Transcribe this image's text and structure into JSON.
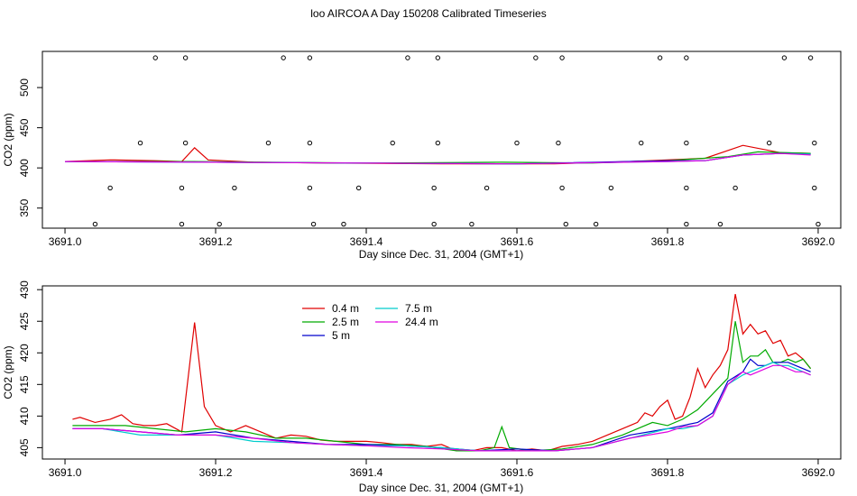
{
  "title": "loo AIRCOA A  Day 150208  Calibrated Timeseries",
  "colors": {
    "0.4 m": "#e00000",
    "2.5 m": "#00aa00",
    "5 m": "#0000cc",
    "7.5 m": "#00cccc",
    "24.4 m": "#e000e0"
  },
  "chart_data": [
    {
      "type": "line",
      "title": "",
      "xlabel": "Day since Dec. 31, 2004 (GMT+1)",
      "ylabel": "CO2 (ppm)",
      "xlim": [
        3690.97,
        3692.03
      ],
      "ylim": [
        325,
        545
      ],
      "xticks": [
        "3691.0",
        "3691.2",
        "3691.4",
        "3691.6",
        "3691.8",
        "3692.0"
      ],
      "yticks": [
        "350",
        "400",
        "450",
        "500"
      ],
      "series": [
        {
          "name": "0.4 m",
          "color": "#e00000",
          "x": [
            3691.0,
            3691.06,
            3691.12,
            3691.155,
            3691.172,
            3691.19,
            3691.25,
            3691.35,
            3691.5,
            3691.65,
            3691.75,
            3691.85,
            3691.9,
            3691.95,
            3691.99
          ],
          "y": [
            408,
            410,
            409,
            408,
            425,
            410,
            407,
            406,
            405,
            405,
            408,
            412,
            428,
            419,
            418
          ]
        },
        {
          "name": "2.5 m",
          "color": "#00aa00",
          "x": [
            3691.0,
            3691.17,
            3691.4,
            3691.58,
            3691.7,
            3691.8,
            3691.88,
            3691.92,
            3691.99
          ],
          "y": [
            408,
            408,
            406,
            407,
            406,
            409,
            414,
            420,
            418
          ]
        },
        {
          "name": "5 m",
          "color": "#0000cc",
          "x": [
            3691.0,
            3691.2,
            3691.4,
            3691.6,
            3691.8,
            3691.85,
            3691.9,
            3691.95,
            3691.99
          ],
          "y": [
            408,
            407,
            406,
            405,
            409,
            409,
            416,
            418,
            417
          ]
        },
        {
          "name": "7.5 m",
          "color": "#00cccc",
          "x": [
            3691.0,
            3691.2,
            3691.4,
            3691.6,
            3691.8,
            3691.85,
            3691.9,
            3691.95,
            3691.99
          ],
          "y": [
            408,
            407,
            406,
            405,
            408,
            409,
            416,
            418,
            417
          ]
        },
        {
          "name": "24.4 m",
          "color": "#e000e0",
          "x": [
            3691.0,
            3691.2,
            3691.4,
            3691.6,
            3691.8,
            3691.85,
            3691.9,
            3691.95,
            3691.99
          ],
          "y": [
            408,
            407,
            406,
            405,
            408,
            409,
            416,
            418,
            416
          ]
        }
      ],
      "markers": {
        "x": [
          3691.12,
          3691.16,
          3691.29,
          3691.325,
          3691.455,
          3691.495,
          3691.625,
          3691.66,
          3691.79,
          3691.825,
          3691.955,
          3691.99,
          3691.1,
          3691.16,
          3691.27,
          3691.325,
          3691.435,
          3691.495,
          3691.6,
          3691.655,
          3691.765,
          3691.825,
          3691.935,
          3691.995,
          3691.06,
          3691.155,
          3691.225,
          3691.325,
          3691.39,
          3691.49,
          3691.56,
          3691.66,
          3691.725,
          3691.825,
          3691.89,
          3691.995,
          3691.04,
          3691.155,
          3691.205,
          3691.33,
          3691.37,
          3691.49,
          3691.54,
          3691.665,
          3691.705,
          3691.825,
          3691.87,
          3692.0
        ],
        "y": [
          537,
          537,
          537,
          537,
          537,
          537,
          537,
          537,
          537,
          537,
          537,
          537,
          431,
          431,
          431,
          431,
          431,
          431,
          431,
          431,
          431,
          431,
          431,
          431,
          375,
          375,
          375,
          375,
          375,
          375,
          375,
          375,
          375,
          375,
          375,
          375,
          330,
          330,
          330,
          330,
          330,
          330,
          330,
          330,
          330,
          330,
          330,
          330
        ]
      }
    },
    {
      "type": "line",
      "title": "",
      "xlabel": "Day since Dec. 31, 2004 (GMT+1)",
      "ylabel": "CO2 (ppm)",
      "xlim": [
        3690.97,
        3692.03
      ],
      "ylim": [
        403.2,
        430.6
      ],
      "xticks": [
        "3691.0",
        "3691.2",
        "3691.4",
        "3691.6",
        "3691.8",
        "3692.0"
      ],
      "yticks": [
        "405",
        "410",
        "415",
        "420",
        "425",
        "430"
      ],
      "legend": {
        "placement": "top-left",
        "entries": [
          "0.4 m",
          "2.5 m",
          "5 m",
          "7.5 m",
          "24.4 m"
        ]
      },
      "series": [
        {
          "name": "0.4 m",
          "color": "#e00000",
          "x": [
            3691.01,
            3691.02,
            3691.04,
            3691.06,
            3691.075,
            3691.09,
            3691.105,
            3691.12,
            3691.135,
            3691.155,
            3691.172,
            3691.185,
            3691.2,
            3691.22,
            3691.24,
            3691.26,
            3691.28,
            3691.3,
            3691.32,
            3691.34,
            3691.36,
            3691.38,
            3691.4,
            3691.42,
            3691.44,
            3691.46,
            3691.48,
            3691.5,
            3691.52,
            3691.54,
            3691.56,
            3691.58,
            3691.6,
            3691.62,
            3691.64,
            3691.66,
            3691.68,
            3691.7,
            3691.72,
            3691.74,
            3691.75,
            3691.76,
            3691.77,
            3691.78,
            3691.79,
            3691.8,
            3691.81,
            3691.82,
            3691.83,
            3691.84,
            3691.85,
            3691.86,
            3691.87,
            3691.88,
            3691.89,
            3691.9,
            3691.91,
            3691.92,
            3691.93,
            3691.94,
            3691.95,
            3691.96,
            3691.97,
            3691.98,
            3691.99
          ],
          "y": [
            409.5,
            409.8,
            409,
            409.5,
            410.2,
            408.8,
            408.5,
            408.5,
            408.8,
            407.5,
            424.8,
            411.5,
            408.5,
            407.5,
            408.5,
            407.5,
            406.5,
            407,
            406.8,
            406.2,
            406,
            406,
            406,
            405.8,
            405.5,
            405.5,
            405.2,
            405.5,
            404.5,
            404.5,
            405,
            405,
            404.5,
            404.8,
            404.5,
            405.2,
            405.5,
            406,
            407,
            408,
            408.5,
            409,
            410.5,
            410,
            411.5,
            412.5,
            409.5,
            410,
            413,
            417.5,
            414.5,
            416.5,
            418,
            420.5,
            429.3,
            423,
            424.5,
            423,
            423.5,
            421.5,
            422,
            419.5,
            420,
            419,
            417.5
          ]
        },
        {
          "name": "2.5 m",
          "color": "#00aa00",
          "x": [
            3691.01,
            3691.04,
            3691.08,
            3691.12,
            3691.16,
            3691.2,
            3691.24,
            3691.28,
            3691.32,
            3691.36,
            3691.4,
            3691.44,
            3691.48,
            3691.52,
            3691.55,
            3691.57,
            3691.58,
            3691.59,
            3691.62,
            3691.66,
            3691.7,
            3691.74,
            3691.78,
            3691.8,
            3691.82,
            3691.84,
            3691.86,
            3691.88,
            3691.89,
            3691.9,
            3691.91,
            3691.92,
            3691.93,
            3691.94,
            3691.95,
            3691.96,
            3691.97,
            3691.98,
            3691.99
          ],
          "y": [
            408.5,
            408.5,
            408.5,
            408,
            407.5,
            408,
            407.5,
            406.5,
            406.5,
            406,
            405.5,
            405.5,
            405.2,
            404.5,
            404.5,
            405,
            408.3,
            405,
            404.5,
            404.8,
            405.5,
            407,
            409,
            408.5,
            409.5,
            411,
            413.5,
            416,
            425,
            418.5,
            419.5,
            419.5,
            420.5,
            418.5,
            418.5,
            419,
            418.5,
            419,
            417.5
          ]
        },
        {
          "name": "5 m",
          "color": "#0000cc",
          "x": [
            3691.01,
            3691.05,
            3691.1,
            3691.15,
            3691.2,
            3691.25,
            3691.3,
            3691.35,
            3691.4,
            3691.45,
            3691.5,
            3691.55,
            3691.6,
            3691.65,
            3691.7,
            3691.75,
            3691.8,
            3691.82,
            3691.84,
            3691.86,
            3691.88,
            3691.9,
            3691.91,
            3691.92,
            3691.93,
            3691.94,
            3691.95,
            3691.96,
            3691.97,
            3691.98,
            3691.99
          ],
          "y": [
            408,
            408,
            407.5,
            407,
            407.5,
            406.5,
            406,
            405.5,
            405.5,
            405.3,
            405,
            404.5,
            404.8,
            404.5,
            405,
            407,
            408,
            408.5,
            409,
            410.5,
            415.5,
            417,
            419,
            418,
            418,
            418.5,
            418.5,
            418.5,
            418,
            417.5,
            417
          ]
        },
        {
          "name": "7.5 m",
          "color": "#00cccc",
          "x": [
            3691.01,
            3691.05,
            3691.1,
            3691.15,
            3691.2,
            3691.25,
            3691.3,
            3691.35,
            3691.4,
            3691.45,
            3691.5,
            3691.55,
            3691.6,
            3691.65,
            3691.7,
            3691.75,
            3691.8,
            3691.82,
            3691.84,
            3691.86,
            3691.88,
            3691.9,
            3691.91,
            3691.92,
            3691.93,
            3691.94,
            3691.95,
            3691.96,
            3691.97,
            3691.98,
            3691.99
          ],
          "y": [
            408,
            408,
            407,
            407,
            407,
            406,
            405.8,
            405.5,
            405.3,
            405.3,
            405,
            404.5,
            404.5,
            404.5,
            405,
            406.5,
            408,
            408,
            408.5,
            410,
            415,
            416.5,
            417,
            417.5,
            418,
            418.5,
            418,
            418,
            417.5,
            417,
            416.5
          ]
        },
        {
          "name": "24.4 m",
          "color": "#e000e0",
          "x": [
            3691.01,
            3691.05,
            3691.1,
            3691.15,
            3691.2,
            3691.25,
            3691.3,
            3691.35,
            3691.4,
            3691.45,
            3691.5,
            3691.55,
            3691.6,
            3691.65,
            3691.7,
            3691.75,
            3691.8,
            3691.82,
            3691.84,
            3691.86,
            3691.88,
            3691.9,
            3691.91,
            3691.92,
            3691.93,
            3691.94,
            3691.95,
            3691.96,
            3691.97,
            3691.98,
            3691.99
          ],
          "y": [
            408,
            408,
            407.5,
            407,
            407,
            406.5,
            405.8,
            405.5,
            405.3,
            405,
            404.8,
            404.5,
            404.5,
            404.5,
            405,
            406.5,
            407.5,
            408.3,
            408.5,
            410,
            415,
            417,
            416.5,
            417,
            417.5,
            418,
            418,
            417.5,
            417,
            417,
            416.5
          ]
        }
      ]
    }
  ]
}
